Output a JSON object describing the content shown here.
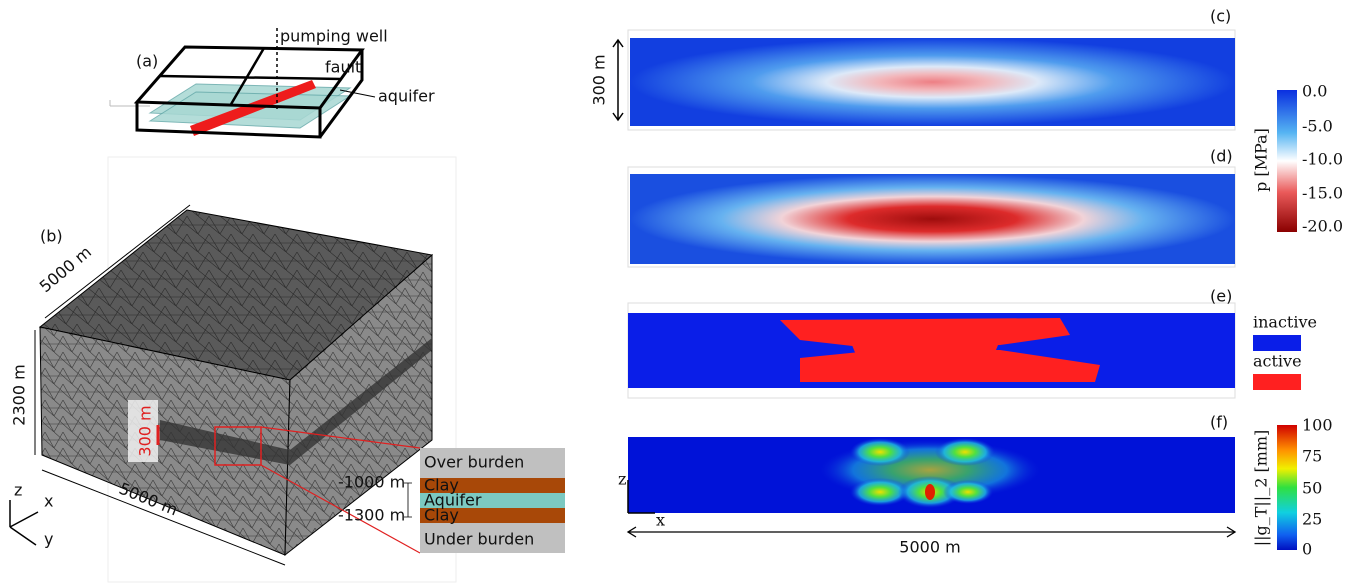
{
  "panel_a": {
    "label": "(a)",
    "pumping_well": "pumping well",
    "fault": "fault",
    "aquifer": "aquifer"
  },
  "panel_b": {
    "label": "(b)",
    "top_width": "5000 m",
    "height": "2300 m",
    "fault_height": "300 m",
    "bottom_width": "5000 m",
    "axes": {
      "z": "z",
      "x": "x",
      "y": "y"
    },
    "layers": [
      "Over burden",
      "Clay",
      "Aquifer",
      "Clay",
      "Under burden"
    ],
    "depths": [
      "-1000 m",
      "-1300 m"
    ]
  },
  "panel_c": {
    "label": "(c)",
    "height": "300 m"
  },
  "panel_d": {
    "label": "(d)"
  },
  "panel_e": {
    "label": "(e)",
    "legend": [
      "inactive",
      "active"
    ]
  },
  "panel_f": {
    "label": "(f)",
    "z": "z",
    "x": "x",
    "width": "5000 m"
  },
  "colorbar_p": {
    "title": "p [MPa]",
    "ticks": [
      "0.0",
      "-5.0",
      "-10.0",
      "-15.0",
      "-20.0"
    ]
  },
  "colorbar_g": {
    "title": "||g_T||_2 [mm]",
    "ticks": [
      "100",
      "75",
      "50",
      "25",
      "0"
    ]
  }
}
